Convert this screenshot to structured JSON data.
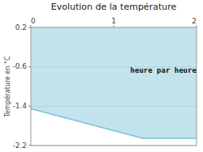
{
  "chart_data": {
    "type": "line",
    "title": "Evolution de la température",
    "y_label": "Température en °C",
    "x": [
      0,
      1.35,
      2
    ],
    "values": [
      -1.45,
      -2.05,
      -2.05
    ],
    "color": "#7ac0d8",
    "xlim": [
      0,
      2
    ],
    "ylim": [
      -2.2,
      0.2
    ],
    "xticks": [
      0,
      1,
      2
    ],
    "yticks": [
      0.2,
      -0.6,
      -1.4,
      -2.2
    ],
    "grid": true,
    "annotations": [
      {
        "text": "heure par heure",
        "x": 1.6,
        "y": -0.68
      }
    ]
  }
}
